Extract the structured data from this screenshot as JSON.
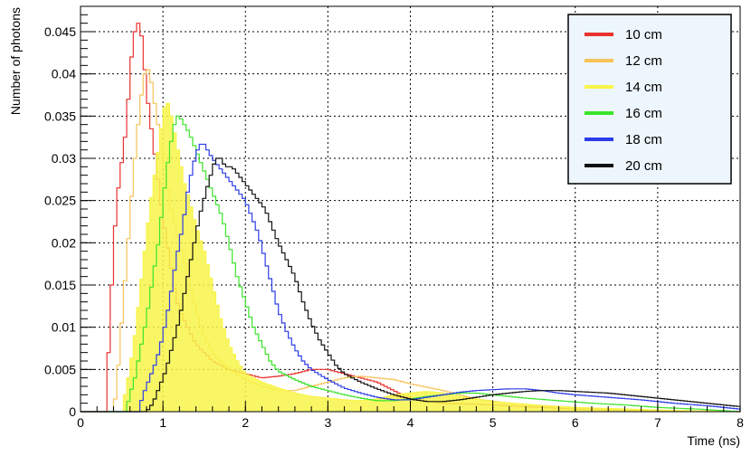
{
  "chart_data": {
    "type": "line",
    "style": "step-histogram",
    "xlabel": "Time (ns)",
    "ylabel": "Number of photons",
    "xlim": [
      0,
      8
    ],
    "ylim": [
      0,
      0.048
    ],
    "x_ticks": [
      0,
      1,
      2,
      3,
      4,
      5,
      6,
      7,
      8
    ],
    "y_ticks": [
      0,
      0.005,
      0.01,
      0.015,
      0.02,
      0.025,
      0.03,
      0.035,
      0.04,
      0.045
    ],
    "y_tick_labels": [
      "0",
      "0.005",
      "0.01",
      "0.015",
      "0.02",
      "0.025",
      "0.03",
      "0.035",
      "0.04",
      "0.045"
    ],
    "grid": true,
    "legend_position": "top-right",
    "bin_width": 0.04,
    "series": [
      {
        "name": "10 cm",
        "color": "#e8322e",
        "filled": false,
        "points": [
          [
            0.0,
            0
          ],
          [
            0.3,
            0
          ],
          [
            0.32,
            0.003
          ],
          [
            0.36,
            0.011
          ],
          [
            0.4,
            0.019
          ],
          [
            0.44,
            0.025
          ],
          [
            0.48,
            0.028
          ],
          [
            0.52,
            0.031
          ],
          [
            0.56,
            0.034
          ],
          [
            0.6,
            0.04
          ],
          [
            0.64,
            0.044
          ],
          [
            0.68,
            0.046
          ],
          [
            0.72,
            0.046
          ],
          [
            0.76,
            0.043
          ],
          [
            0.8,
            0.038
          ],
          [
            0.84,
            0.035
          ],
          [
            0.88,
            0.032
          ],
          [
            0.92,
            0.029
          ],
          [
            0.96,
            0.026
          ],
          [
            1.0,
            0.023
          ],
          [
            1.05,
            0.02
          ],
          [
            1.1,
            0.017
          ],
          [
            1.15,
            0.014
          ],
          [
            1.2,
            0.012
          ],
          [
            1.3,
            0.01
          ],
          [
            1.4,
            0.008
          ],
          [
            1.5,
            0.007
          ],
          [
            1.6,
            0.006
          ],
          [
            1.8,
            0.005
          ],
          [
            2.0,
            0.0045
          ],
          [
            2.2,
            0.004
          ],
          [
            2.4,
            0.0042
          ],
          [
            2.6,
            0.0045
          ],
          [
            2.8,
            0.005
          ],
          [
            3.0,
            0.005
          ],
          [
            3.2,
            0.0045
          ],
          [
            3.4,
            0.004
          ],
          [
            3.6,
            0.0035
          ],
          [
            3.8,
            0.0025
          ],
          [
            4.0,
            0.0015
          ],
          [
            4.4,
            0.001
          ],
          [
            5.0,
            0.0008
          ],
          [
            6.0,
            0.0003
          ],
          [
            7.0,
            0.0001
          ],
          [
            8.0,
            0
          ]
        ]
      },
      {
        "name": "12 cm",
        "color": "#f7c35a",
        "filled": false,
        "points": [
          [
            0.0,
            0
          ],
          [
            0.4,
            0
          ],
          [
            0.44,
            0.003
          ],
          [
            0.48,
            0.008
          ],
          [
            0.52,
            0.013
          ],
          [
            0.56,
            0.018
          ],
          [
            0.6,
            0.023
          ],
          [
            0.64,
            0.028
          ],
          [
            0.68,
            0.032
          ],
          [
            0.72,
            0.036
          ],
          [
            0.76,
            0.039
          ],
          [
            0.8,
            0.041
          ],
          [
            0.84,
            0.04
          ],
          [
            0.88,
            0.038
          ],
          [
            0.92,
            0.035
          ],
          [
            0.96,
            0.033
          ],
          [
            1.0,
            0.03
          ],
          [
            1.05,
            0.027
          ],
          [
            1.1,
            0.024
          ],
          [
            1.2,
            0.02
          ],
          [
            1.3,
            0.016
          ],
          [
            1.4,
            0.012
          ],
          [
            1.5,
            0.009
          ],
          [
            1.6,
            0.007
          ],
          [
            1.8,
            0.005
          ],
          [
            2.0,
            0.0038
          ],
          [
            2.2,
            0.003
          ],
          [
            2.4,
            0.0025
          ],
          [
            2.6,
            0.0025
          ],
          [
            2.8,
            0.003
          ],
          [
            3.0,
            0.0035
          ],
          [
            3.2,
            0.004
          ],
          [
            3.4,
            0.0042
          ],
          [
            3.6,
            0.004
          ],
          [
            3.8,
            0.0038
          ],
          [
            4.0,
            0.0033
          ],
          [
            4.4,
            0.0025
          ],
          [
            4.8,
            0.0015
          ],
          [
            5.2,
            0.001
          ],
          [
            6.0,
            0.0004
          ],
          [
            7.0,
            0.0001
          ],
          [
            8.0,
            0
          ]
        ]
      },
      {
        "name": "14 cm",
        "color": "#f8f44a",
        "filled": true,
        "points": [
          [
            0.0,
            0
          ],
          [
            0.5,
            0
          ],
          [
            0.54,
            0.002
          ],
          [
            0.6,
            0.005
          ],
          [
            0.66,
            0.009
          ],
          [
            0.72,
            0.014
          ],
          [
            0.78,
            0.019
          ],
          [
            0.84,
            0.024
          ],
          [
            0.9,
            0.028
          ],
          [
            0.96,
            0.032
          ],
          [
            1.0,
            0.035
          ],
          [
            1.04,
            0.037
          ],
          [
            1.08,
            0.036
          ],
          [
            1.12,
            0.034
          ],
          [
            1.16,
            0.032
          ],
          [
            1.2,
            0.03
          ],
          [
            1.26,
            0.027
          ],
          [
            1.32,
            0.025
          ],
          [
            1.4,
            0.022
          ],
          [
            1.5,
            0.019
          ],
          [
            1.6,
            0.015
          ],
          [
            1.7,
            0.011
          ],
          [
            1.8,
            0.008
          ],
          [
            1.9,
            0.006
          ],
          [
            2.0,
            0.0045
          ],
          [
            2.2,
            0.0035
          ],
          [
            2.4,
            0.0028
          ],
          [
            2.6,
            0.0022
          ],
          [
            2.8,
            0.0018
          ],
          [
            3.0,
            0.0016
          ],
          [
            3.2,
            0.0014
          ],
          [
            3.4,
            0.0013
          ],
          [
            3.6,
            0.0015
          ],
          [
            3.8,
            0.002
          ],
          [
            4.0,
            0.0022
          ],
          [
            4.2,
            0.0024
          ],
          [
            4.4,
            0.0022
          ],
          [
            4.6,
            0.0018
          ],
          [
            4.8,
            0.0015
          ],
          [
            5.0,
            0.0012
          ],
          [
            5.5,
            0.0008
          ],
          [
            6.0,
            0.0005
          ],
          [
            7.0,
            0.0002
          ],
          [
            8.0,
            0
          ]
        ]
      },
      {
        "name": "16 cm",
        "color": "#3ae42a",
        "filled": false,
        "points": [
          [
            0.0,
            0
          ],
          [
            0.55,
            0
          ],
          [
            0.6,
            0.002
          ],
          [
            0.66,
            0.004
          ],
          [
            0.72,
            0.007
          ],
          [
            0.8,
            0.011
          ],
          [
            0.88,
            0.016
          ],
          [
            0.96,
            0.021
          ],
          [
            1.0,
            0.025
          ],
          [
            1.04,
            0.028
          ],
          [
            1.08,
            0.031
          ],
          [
            1.12,
            0.033
          ],
          [
            1.16,
            0.035
          ],
          [
            1.2,
            0.035
          ],
          [
            1.26,
            0.034
          ],
          [
            1.32,
            0.033
          ],
          [
            1.4,
            0.031
          ],
          [
            1.48,
            0.029
          ],
          [
            1.56,
            0.027
          ],
          [
            1.64,
            0.025
          ],
          [
            1.72,
            0.023
          ],
          [
            1.8,
            0.02
          ],
          [
            1.9,
            0.016
          ],
          [
            2.0,
            0.013
          ],
          [
            2.1,
            0.01
          ],
          [
            2.2,
            0.008
          ],
          [
            2.3,
            0.006
          ],
          [
            2.4,
            0.0048
          ],
          [
            2.6,
            0.0038
          ],
          [
            2.8,
            0.003
          ],
          [
            3.0,
            0.0025
          ],
          [
            3.2,
            0.002
          ],
          [
            3.4,
            0.0016
          ],
          [
            3.6,
            0.0013
          ],
          [
            3.8,
            0.0013
          ],
          [
            4.0,
            0.0015
          ],
          [
            4.2,
            0.0018
          ],
          [
            4.4,
            0.002
          ],
          [
            4.6,
            0.0022
          ],
          [
            4.8,
            0.0022
          ],
          [
            5.0,
            0.002
          ],
          [
            5.4,
            0.0016
          ],
          [
            5.8,
            0.0013
          ],
          [
            6.2,
            0.001
          ],
          [
            6.6,
            0.0008
          ],
          [
            7.0,
            0.0005
          ],
          [
            7.5,
            0.0003
          ],
          [
            8.0,
            0
          ]
        ]
      },
      {
        "name": "18 cm",
        "color": "#2c3ce8",
        "filled": false,
        "points": [
          [
            0.0,
            0
          ],
          [
            0.7,
            0
          ],
          [
            0.76,
            0.002
          ],
          [
            0.84,
            0.004
          ],
          [
            0.92,
            0.006
          ],
          [
            1.0,
            0.009
          ],
          [
            1.08,
            0.013
          ],
          [
            1.16,
            0.018
          ],
          [
            1.24,
            0.022
          ],
          [
            1.3,
            0.026
          ],
          [
            1.36,
            0.029
          ],
          [
            1.42,
            0.031
          ],
          [
            1.48,
            0.032
          ],
          [
            1.54,
            0.031
          ],
          [
            1.6,
            0.03
          ],
          [
            1.68,
            0.029
          ],
          [
            1.76,
            0.028
          ],
          [
            1.84,
            0.027
          ],
          [
            1.92,
            0.026
          ],
          [
            2.0,
            0.025
          ],
          [
            2.08,
            0.023
          ],
          [
            2.16,
            0.021
          ],
          [
            2.24,
            0.018
          ],
          [
            2.32,
            0.015
          ],
          [
            2.4,
            0.012
          ],
          [
            2.5,
            0.0095
          ],
          [
            2.6,
            0.0075
          ],
          [
            2.7,
            0.006
          ],
          [
            2.8,
            0.005
          ],
          [
            3.0,
            0.0038
          ],
          [
            3.2,
            0.0028
          ],
          [
            3.4,
            0.0022
          ],
          [
            3.6,
            0.0017
          ],
          [
            3.8,
            0.0014
          ],
          [
            4.0,
            0.0014
          ],
          [
            4.2,
            0.0017
          ],
          [
            4.4,
            0.002
          ],
          [
            4.6,
            0.0023
          ],
          [
            4.8,
            0.0025
          ],
          [
            5.0,
            0.0026
          ],
          [
            5.2,
            0.0027
          ],
          [
            5.4,
            0.0027
          ],
          [
            5.6,
            0.0025
          ],
          [
            5.8,
            0.0022
          ],
          [
            6.0,
            0.002
          ],
          [
            6.4,
            0.0017
          ],
          [
            6.8,
            0.0014
          ],
          [
            7.2,
            0.001
          ],
          [
            7.6,
            0.0007
          ],
          [
            8.0,
            0.0003
          ]
        ]
      },
      {
        "name": "20 cm",
        "color": "#111111",
        "filled": false,
        "points": [
          [
            0.0,
            0
          ],
          [
            0.8,
            0
          ],
          [
            0.88,
            0.001
          ],
          [
            0.96,
            0.003
          ],
          [
            1.04,
            0.005
          ],
          [
            1.12,
            0.008
          ],
          [
            1.2,
            0.011
          ],
          [
            1.28,
            0.015
          ],
          [
            1.36,
            0.019
          ],
          [
            1.44,
            0.023
          ],
          [
            1.52,
            0.026
          ],
          [
            1.58,
            0.028
          ],
          [
            1.64,
            0.03
          ],
          [
            1.7,
            0.03
          ],
          [
            1.76,
            0.029
          ],
          [
            1.84,
            0.029
          ],
          [
            1.92,
            0.028
          ],
          [
            2.0,
            0.027
          ],
          [
            2.08,
            0.026
          ],
          [
            2.16,
            0.025
          ],
          [
            2.24,
            0.024
          ],
          [
            2.32,
            0.022
          ],
          [
            2.4,
            0.02
          ],
          [
            2.5,
            0.018
          ],
          [
            2.6,
            0.016
          ],
          [
            2.7,
            0.013
          ],
          [
            2.8,
            0.0105
          ],
          [
            2.9,
            0.0085
          ],
          [
            3.0,
            0.007
          ],
          [
            3.1,
            0.0055
          ],
          [
            3.2,
            0.0045
          ],
          [
            3.4,
            0.0035
          ],
          [
            3.6,
            0.0027
          ],
          [
            3.8,
            0.002
          ],
          [
            4.0,
            0.0015
          ],
          [
            4.2,
            0.0012
          ],
          [
            4.4,
            0.0012
          ],
          [
            4.6,
            0.0014
          ],
          [
            4.8,
            0.0017
          ],
          [
            5.0,
            0.002
          ],
          [
            5.2,
            0.0022
          ],
          [
            5.4,
            0.0024
          ],
          [
            5.6,
            0.0025
          ],
          [
            5.8,
            0.0025
          ],
          [
            6.0,
            0.0024
          ],
          [
            6.2,
            0.0023
          ],
          [
            6.4,
            0.0022
          ],
          [
            6.6,
            0.002
          ],
          [
            6.8,
            0.0018
          ],
          [
            7.0,
            0.0016
          ],
          [
            7.2,
            0.0014
          ],
          [
            7.4,
            0.0012
          ],
          [
            7.6,
            0.001
          ],
          [
            7.8,
            0.0008
          ],
          [
            8.0,
            0.0006
          ]
        ]
      }
    ]
  }
}
